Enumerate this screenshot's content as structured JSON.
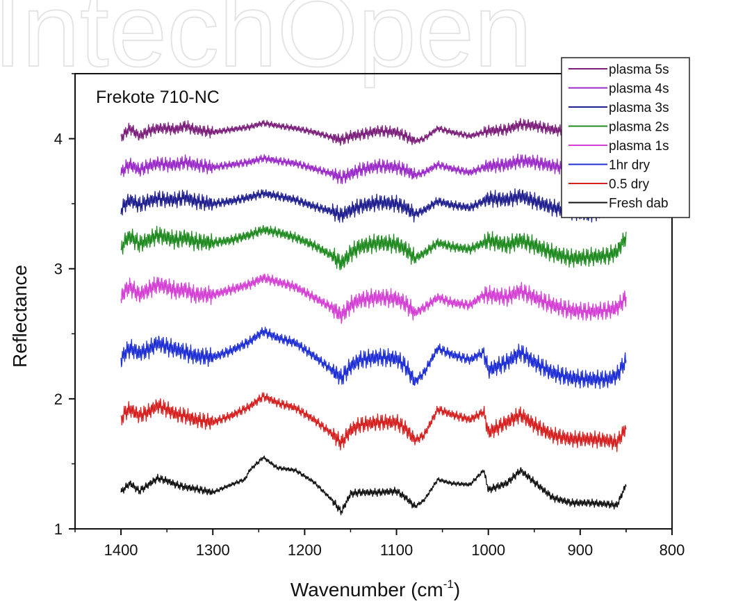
{
  "chart_data": {
    "type": "line",
    "title": "Frekote 710-NC",
    "xlabel": "Wavenumber (cm",
    "xlabel_superscript": "-1",
    "xlabel_suffix": ")",
    "ylabel": "Reflectance",
    "xlim": [
      1450,
      800
    ],
    "ylim": [
      1,
      4.5
    ],
    "x_ticks": [
      "1400",
      "1300",
      "1200",
      "1100",
      "1000",
      "900",
      "800"
    ],
    "y_ticks": [
      "1",
      "2",
      "3",
      "4"
    ],
    "x_reversed": true,
    "grid": false,
    "legend_position": "top-right",
    "x_range": [
      1400,
      850
    ],
    "series": [
      {
        "name": "plasma 5s",
        "color": "#7b1f7b",
        "noise": 0.018,
        "x": [
          1400,
          1395,
          1390,
          1380,
          1370,
          1360,
          1350,
          1340,
          1330,
          1320,
          1300,
          1280,
          1260,
          1245,
          1230,
          1210,
          1190,
          1170,
          1160,
          1150,
          1140,
          1120,
          1100,
          1090,
          1080,
          1070,
          1055,
          1040,
          1020,
          1005,
          1000,
          980,
          965,
          950,
          930,
          910,
          890,
          870,
          860,
          850
        ],
        "y": [
          4.0,
          4.05,
          4.08,
          4.02,
          4.06,
          4.08,
          4.08,
          4.07,
          4.1,
          4.07,
          4.05,
          4.07,
          4.09,
          4.12,
          4.1,
          4.08,
          4.05,
          4.01,
          3.99,
          4.02,
          4.03,
          4.06,
          4.05,
          4.02,
          3.98,
          4.0,
          4.08,
          4.05,
          4.02,
          4.05,
          4.06,
          4.07,
          4.11,
          4.1,
          4.07,
          4.05,
          4.03,
          4.04,
          4.06,
          4.08
        ]
      },
      {
        "name": "plasma 4s",
        "color": "#9b2bc8",
        "noise": 0.022,
        "x": [
          1400,
          1395,
          1390,
          1380,
          1370,
          1360,
          1350,
          1340,
          1330,
          1320,
          1300,
          1280,
          1260,
          1245,
          1230,
          1210,
          1190,
          1170,
          1160,
          1150,
          1140,
          1120,
          1100,
          1090,
          1080,
          1070,
          1055,
          1040,
          1020,
          1005,
          1000,
          980,
          965,
          950,
          930,
          910,
          890,
          870,
          860,
          850
        ],
        "y": [
          3.73,
          3.78,
          3.8,
          3.76,
          3.79,
          3.81,
          3.8,
          3.8,
          3.82,
          3.8,
          3.78,
          3.8,
          3.82,
          3.85,
          3.83,
          3.81,
          3.77,
          3.73,
          3.7,
          3.73,
          3.76,
          3.79,
          3.78,
          3.76,
          3.72,
          3.74,
          3.8,
          3.77,
          3.74,
          3.78,
          3.79,
          3.8,
          3.83,
          3.82,
          3.79,
          3.77,
          3.75,
          3.76,
          3.78,
          3.8
        ]
      },
      {
        "name": "plasma 3s",
        "color": "#1f1f8f",
        "noise": 0.025,
        "x": [
          1400,
          1395,
          1390,
          1380,
          1370,
          1360,
          1350,
          1340,
          1330,
          1320,
          1300,
          1280,
          1260,
          1245,
          1230,
          1210,
          1190,
          1170,
          1160,
          1150,
          1140,
          1120,
          1100,
          1090,
          1080,
          1070,
          1055,
          1040,
          1020,
          1005,
          1000,
          980,
          965,
          950,
          930,
          910,
          890,
          870,
          860,
          850
        ],
        "y": [
          3.45,
          3.5,
          3.53,
          3.49,
          3.52,
          3.54,
          3.53,
          3.53,
          3.55,
          3.52,
          3.5,
          3.52,
          3.55,
          3.58,
          3.56,
          3.53,
          3.48,
          3.44,
          3.41,
          3.45,
          3.48,
          3.51,
          3.5,
          3.47,
          3.42,
          3.45,
          3.52,
          3.49,
          3.47,
          3.52,
          3.54,
          3.53,
          3.56,
          3.52,
          3.47,
          3.44,
          3.42,
          3.45,
          3.48,
          3.5
        ]
      },
      {
        "name": "plasma 2s",
        "color": "#1f8a1f",
        "noise": 0.028,
        "x": [
          1400,
          1395,
          1390,
          1380,
          1370,
          1360,
          1350,
          1340,
          1330,
          1320,
          1300,
          1280,
          1260,
          1245,
          1230,
          1210,
          1190,
          1170,
          1160,
          1150,
          1140,
          1120,
          1100,
          1090,
          1080,
          1070,
          1055,
          1040,
          1020,
          1005,
          1000,
          980,
          965,
          950,
          930,
          910,
          890,
          870,
          860,
          850
        ],
        "y": [
          3.15,
          3.22,
          3.25,
          3.19,
          3.22,
          3.26,
          3.24,
          3.22,
          3.24,
          3.21,
          3.2,
          3.22,
          3.26,
          3.3,
          3.28,
          3.24,
          3.18,
          3.1,
          3.04,
          3.12,
          3.17,
          3.2,
          3.19,
          3.15,
          3.08,
          3.12,
          3.2,
          3.17,
          3.15,
          3.2,
          3.22,
          3.18,
          3.22,
          3.18,
          3.12,
          3.08,
          3.09,
          3.1,
          3.13,
          3.25
        ]
      },
      {
        "name": "plasma 1s",
        "color": "#d43fd4",
        "noise": 0.028,
        "x": [
          1400,
          1395,
          1390,
          1380,
          1370,
          1360,
          1350,
          1340,
          1330,
          1320,
          1300,
          1280,
          1260,
          1245,
          1230,
          1210,
          1190,
          1170,
          1160,
          1150,
          1140,
          1120,
          1100,
          1090,
          1080,
          1070,
          1055,
          1040,
          1020,
          1005,
          1000,
          980,
          965,
          950,
          930,
          910,
          890,
          870,
          860,
          850
        ],
        "y": [
          2.77,
          2.84,
          2.86,
          2.8,
          2.84,
          2.88,
          2.86,
          2.83,
          2.84,
          2.8,
          2.8,
          2.84,
          2.88,
          2.93,
          2.9,
          2.86,
          2.78,
          2.7,
          2.64,
          2.72,
          2.76,
          2.78,
          2.77,
          2.73,
          2.66,
          2.7,
          2.78,
          2.74,
          2.72,
          2.8,
          2.8,
          2.78,
          2.83,
          2.78,
          2.72,
          2.68,
          2.67,
          2.68,
          2.7,
          2.78
        ]
      },
      {
        "name": "1hr dry",
        "color": "#1f2fd6",
        "noise": 0.028,
        "x": [
          1400,
          1395,
          1390,
          1380,
          1370,
          1360,
          1350,
          1340,
          1330,
          1320,
          1300,
          1280,
          1260,
          1245,
          1230,
          1210,
          1190,
          1170,
          1160,
          1150,
          1140,
          1120,
          1100,
          1090,
          1080,
          1070,
          1055,
          1040,
          1020,
          1005,
          1000,
          980,
          965,
          950,
          930,
          910,
          890,
          870,
          860,
          850
        ],
        "y": [
          2.3,
          2.36,
          2.39,
          2.35,
          2.38,
          2.43,
          2.4,
          2.38,
          2.36,
          2.33,
          2.32,
          2.37,
          2.44,
          2.52,
          2.47,
          2.43,
          2.33,
          2.22,
          2.16,
          2.25,
          2.3,
          2.32,
          2.31,
          2.25,
          2.13,
          2.2,
          2.39,
          2.34,
          2.3,
          2.36,
          2.22,
          2.28,
          2.36,
          2.28,
          2.2,
          2.16,
          2.15,
          2.15,
          2.18,
          2.3
        ]
      },
      {
        "name": "0.5 dry",
        "color": "#d61f1f",
        "noise": 0.025,
        "x": [
          1400,
          1395,
          1390,
          1380,
          1370,
          1360,
          1350,
          1340,
          1330,
          1320,
          1300,
          1280,
          1260,
          1245,
          1230,
          1210,
          1190,
          1170,
          1160,
          1150,
          1140,
          1120,
          1100,
          1090,
          1080,
          1070,
          1055,
          1040,
          1020,
          1005,
          1000,
          980,
          965,
          950,
          930,
          910,
          890,
          870,
          860,
          850
        ],
        "y": [
          1.84,
          1.9,
          1.92,
          1.87,
          1.9,
          1.95,
          1.92,
          1.88,
          1.87,
          1.84,
          1.82,
          1.87,
          1.94,
          2.02,
          1.97,
          1.93,
          1.84,
          1.73,
          1.66,
          1.76,
          1.8,
          1.82,
          1.82,
          1.77,
          1.68,
          1.72,
          1.92,
          1.88,
          1.84,
          1.9,
          1.74,
          1.82,
          1.88,
          1.8,
          1.72,
          1.69,
          1.69,
          1.68,
          1.66,
          1.78
        ]
      },
      {
        "name": "Fresh dab",
        "color": "#111111",
        "noise": 0.012,
        "x": [
          1400,
          1395,
          1390,
          1380,
          1370,
          1360,
          1350,
          1340,
          1330,
          1320,
          1300,
          1280,
          1265,
          1260,
          1245,
          1230,
          1210,
          1190,
          1170,
          1160,
          1150,
          1140,
          1120,
          1100,
          1090,
          1080,
          1070,
          1055,
          1040,
          1020,
          1005,
          1000,
          980,
          965,
          950,
          930,
          910,
          890,
          870,
          860,
          850
        ],
        "y": [
          1.28,
          1.32,
          1.35,
          1.29,
          1.34,
          1.39,
          1.37,
          1.34,
          1.32,
          1.31,
          1.28,
          1.34,
          1.38,
          1.45,
          1.55,
          1.47,
          1.45,
          1.36,
          1.22,
          1.13,
          1.27,
          1.28,
          1.28,
          1.29,
          1.24,
          1.17,
          1.22,
          1.38,
          1.35,
          1.34,
          1.45,
          1.3,
          1.35,
          1.45,
          1.36,
          1.24,
          1.2,
          1.2,
          1.19,
          1.18,
          1.34
        ]
      }
    ]
  }
}
